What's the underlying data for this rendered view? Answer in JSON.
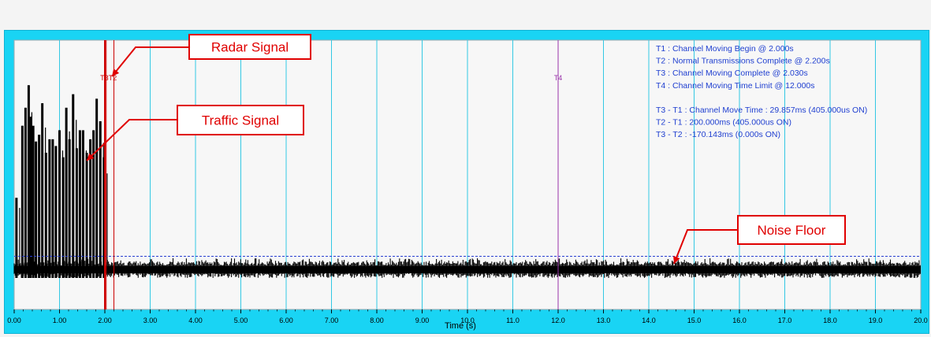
{
  "chart_data": {
    "type": "line",
    "title": "",
    "xlabel": "Time (s)",
    "ylabel": "",
    "xlim": [
      0.0,
      20.0
    ],
    "x_ticks": [
      "0.00",
      "1.00",
      "2.00",
      "3.00",
      "4.00",
      "5.00",
      "6.00",
      "7.00",
      "8.00",
      "9.00",
      "10.0",
      "11.0",
      "12.0",
      "13.0",
      "14.0",
      "15.0",
      "16.0",
      "17.0",
      "18.0",
      "19.0",
      "20.0"
    ],
    "grid": true,
    "markers": [
      {
        "name": "T1",
        "x": 2.0,
        "color": "#cc0000"
      },
      {
        "name": "T2",
        "x": 2.2,
        "color": "#cc0000"
      },
      {
        "name": "T3",
        "x": 2.03,
        "color": "#cc0000"
      },
      {
        "name": "T4",
        "x": 12.0,
        "color": "#9933aa"
      }
    ],
    "marker_label_T3T2": "T3T2",
    "marker_label_T4": "T4",
    "info_lines": [
      "T1 : Channel Moving Begin @ 2.000s",
      "T2 : Normal Transmissions Complete @ 2.200s",
      "T3 : Channel Moving Complete @ 2.030s",
      "T4 : Channel Moving Time Limit @ 12.000s",
      "",
      "T3 - T1 : Channel Move Time : 29.857ms (405.000us ON)",
      "T2 - T1 : 200.000ms (405.000us ON)",
      "T3 - T2 : -170.143ms (0.000s ON)"
    ],
    "annotations": [
      {
        "text": "Radar Signal",
        "x": 2.03
      },
      {
        "text": "Traffic Signal",
        "x": 1.5
      },
      {
        "text": "Noise Floor",
        "x": 14.6
      }
    ],
    "noise_floor_level": 0.04,
    "traffic_x": [
      0.05,
      0.18,
      0.25,
      0.32,
      0.36,
      0.42,
      0.48,
      0.55,
      0.62,
      0.7,
      0.78,
      0.85,
      0.92,
      1.0,
      1.08,
      1.15,
      1.22,
      1.3,
      1.38,
      1.45,
      1.52,
      1.6,
      1.68,
      1.75,
      1.82,
      1.9,
      1.98
    ],
    "traffic_y": [
      0.3,
      0.62,
      0.7,
      0.8,
      0.66,
      0.62,
      0.55,
      0.58,
      0.72,
      0.5,
      0.56,
      0.56,
      0.53,
      0.6,
      0.48,
      0.7,
      0.56,
      0.76,
      0.52,
      0.6,
      0.6,
      0.5,
      0.56,
      0.6,
      0.74,
      0.64,
      0.48
    ]
  }
}
